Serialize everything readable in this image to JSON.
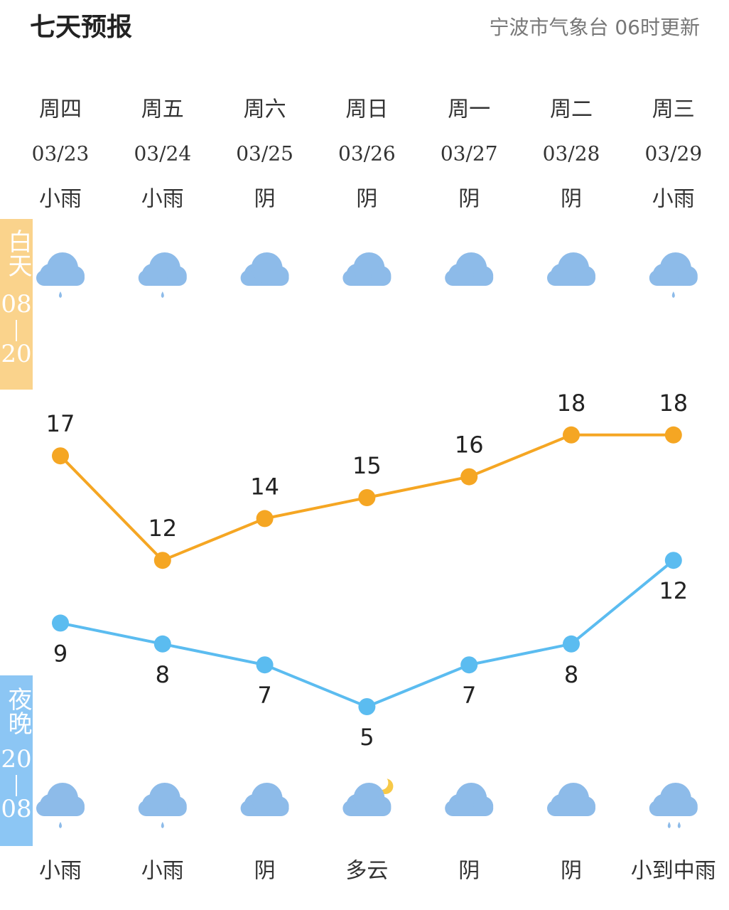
{
  "header": {
    "title": "七天预报",
    "source": "宁波市气象台 06时更新"
  },
  "side_labels": {
    "day": {
      "name": "白天",
      "from": "08",
      "to": "20"
    },
    "night": {
      "name": "夜晚",
      "from": "20",
      "to": "08"
    }
  },
  "days": [
    {
      "weekday": "周四",
      "day_weather": "小雨",
      "night_weather": "小雨"
    },
    {
      "weekday": "周五",
      "day_weather": "小雨",
      "night_weather": "小雨"
    },
    {
      "weekday": "周六",
      "day_weather": "阴",
      "night_weather": "阴"
    },
    {
      "weekday": "周日",
      "day_weather": "阴",
      "night_weather": "多云"
    },
    {
      "weekday": "周一",
      "day_weather": "阴",
      "night_weather": "阴"
    },
    {
      "weekday": "周二",
      "day_weather": "阴",
      "night_weather": "阴"
    },
    {
      "weekday": "周三",
      "day_weather": "小雨",
      "night_weather": "小到中雨"
    }
  ],
  "chart_data": {
    "type": "line",
    "categories": [
      "03/23",
      "03/24",
      "03/25",
      "03/26",
      "03/27",
      "03/28",
      "03/29"
    ],
    "series": [
      {
        "color": "#f5a623",
        "values": [
          17,
          12,
          14,
          15,
          16,
          18,
          18
        ]
      },
      {
        "color": "#5bbcf0",
        "values": [
          9,
          8,
          7,
          5,
          7,
          8,
          12
        ]
      }
    ]
  }
}
